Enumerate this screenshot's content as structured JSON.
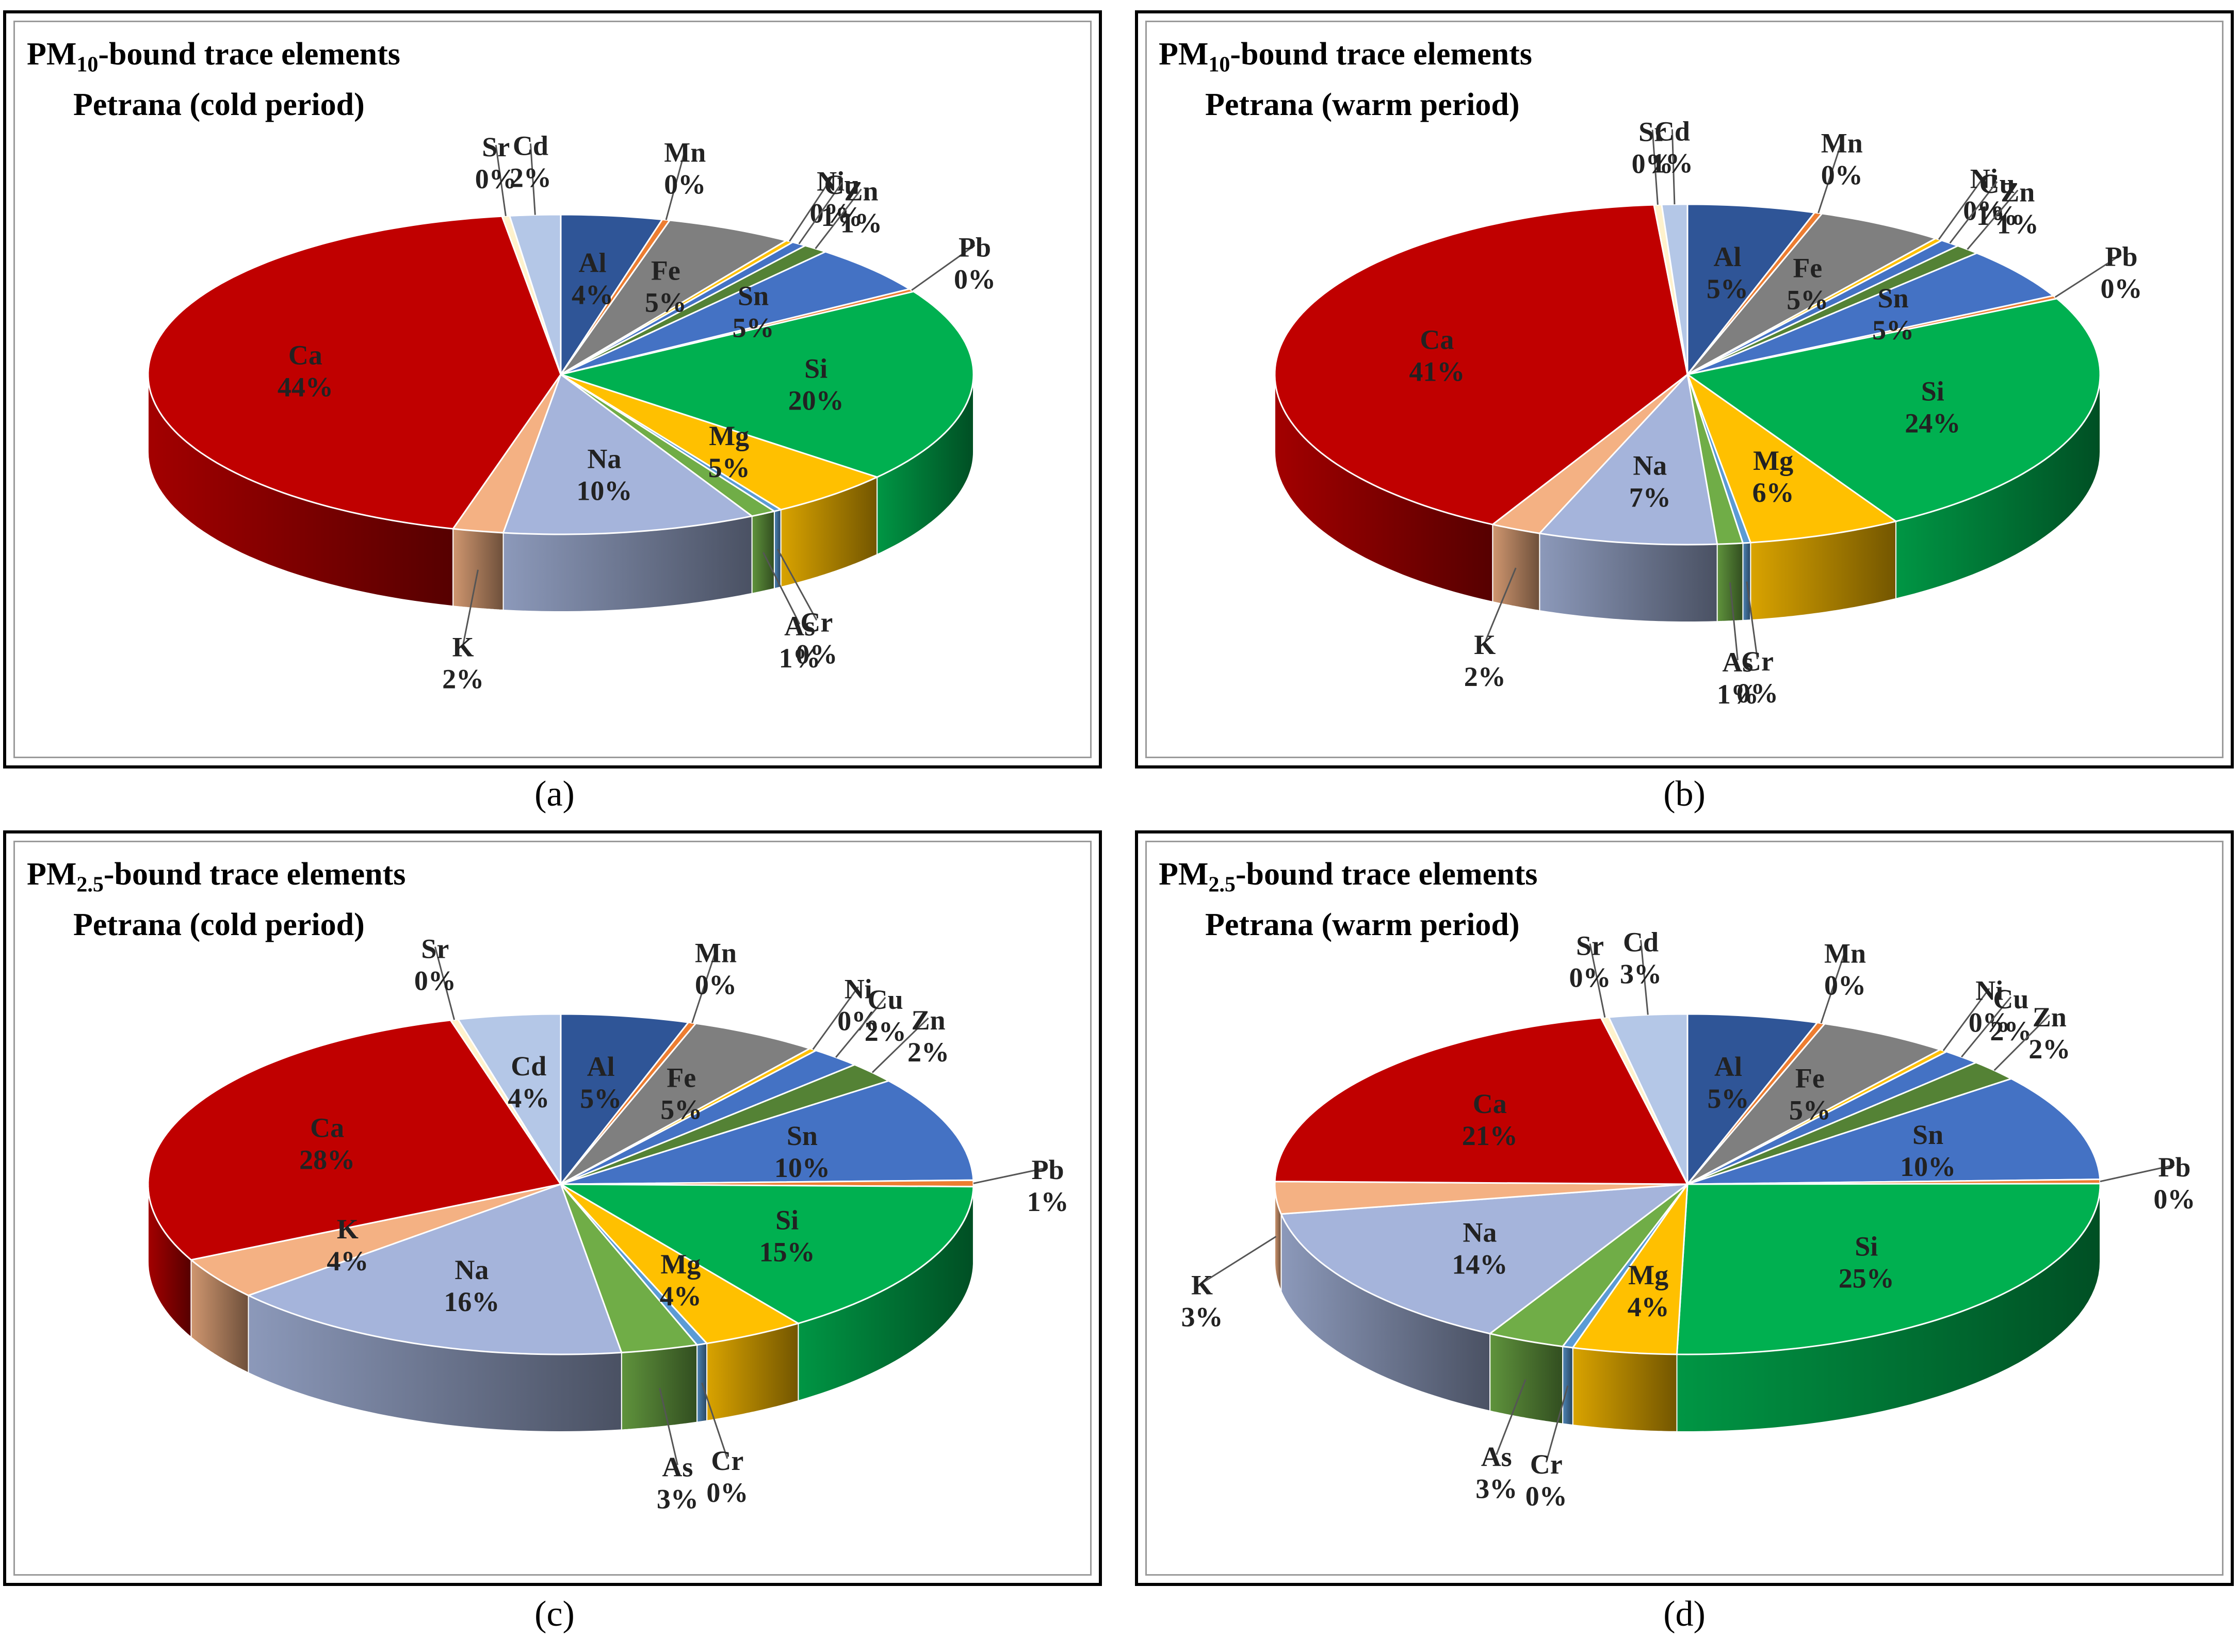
{
  "chart_data": [
    {
      "type": "pie",
      "panel": "a",
      "title_prefix": "PM",
      "title_sub": "10",
      "title_suffix": "-bound trace elements",
      "subtitle": "Petrana (cold period)",
      "caption": "(a)",
      "slices": [
        {
          "name": "Al",
          "value": 4,
          "label": "4%",
          "color": "#2f5597"
        },
        {
          "name": "Mn",
          "value": 0.3,
          "label": "0%",
          "color": "#ed7d31"
        },
        {
          "name": "Fe",
          "value": 5,
          "label": "5%",
          "color": "#7f7f7f"
        },
        {
          "name": "Ni",
          "value": 0.3,
          "label": "0%",
          "color": "#ffc000"
        },
        {
          "name": "Cu",
          "value": 0.6,
          "label": "1%",
          "color": "#4472c4"
        },
        {
          "name": "Zn",
          "value": 1,
          "label": "1%",
          "color": "#548235"
        },
        {
          "name": "Sn",
          "value": 5,
          "label": "5%",
          "color": "#4472c4"
        },
        {
          "name": "Pb",
          "value": 0.3,
          "label": "0%",
          "color": "#ed7d31"
        },
        {
          "name": "Si",
          "value": 20,
          "label": "20%",
          "color": "#00b050"
        },
        {
          "name": "Mg",
          "value": 5,
          "label": "5%",
          "color": "#ffc000"
        },
        {
          "name": "Cr",
          "value": 0.3,
          "label": "0%",
          "color": "#5b9bd5"
        },
        {
          "name": "As",
          "value": 1,
          "label": "1%",
          "color": "#70ad47"
        },
        {
          "name": "Na",
          "value": 10,
          "label": "10%",
          "color": "#a5b4db"
        },
        {
          "name": "K",
          "value": 2,
          "label": "2%",
          "color": "#f4b183"
        },
        {
          "name": "Ca",
          "value": 44,
          "label": "44%",
          "color": "#c00000"
        },
        {
          "name": "Sr",
          "value": 0.3,
          "label": "0%",
          "color": "#fff2cc"
        },
        {
          "name": "Cd",
          "value": 2,
          "label": "2%",
          "color": "#b4c7e7"
        }
      ]
    },
    {
      "type": "pie",
      "panel": "b",
      "title_prefix": "PM",
      "title_sub": "10",
      "title_suffix": "-bound trace elements",
      "subtitle": "Petrana (warm period)",
      "caption": "(b)",
      "slices": [
        {
          "name": "Al",
          "value": 5,
          "label": "5%",
          "color": "#2f5597"
        },
        {
          "name": "Mn",
          "value": 0.3,
          "label": "0%",
          "color": "#ed7d31"
        },
        {
          "name": "Fe",
          "value": 5,
          "label": "5%",
          "color": "#7f7f7f"
        },
        {
          "name": "Ni",
          "value": 0.3,
          "label": "0%",
          "color": "#ffc000"
        },
        {
          "name": "Cu",
          "value": 0.8,
          "label": "1%",
          "color": "#4472c4"
        },
        {
          "name": "Zn",
          "value": 1,
          "label": "1%",
          "color": "#548235"
        },
        {
          "name": "Sn",
          "value": 5,
          "label": "5%",
          "color": "#4472c4"
        },
        {
          "name": "Pb",
          "value": 0.3,
          "label": "0%",
          "color": "#ed7d31"
        },
        {
          "name": "Si",
          "value": 24,
          "label": "24%",
          "color": "#00b050"
        },
        {
          "name": "Mg",
          "value": 6,
          "label": "6%",
          "color": "#ffc000"
        },
        {
          "name": "Cr",
          "value": 0.3,
          "label": "0%",
          "color": "#5b9bd5"
        },
        {
          "name": "As",
          "value": 1,
          "label": "1%",
          "color": "#70ad47"
        },
        {
          "name": "Na",
          "value": 7,
          "label": "7%",
          "color": "#a5b4db"
        },
        {
          "name": "K",
          "value": 2,
          "label": "2%",
          "color": "#f4b183"
        },
        {
          "name": "Ca",
          "value": 41,
          "label": "41%",
          "color": "#c00000"
        },
        {
          "name": "Sr",
          "value": 0.3,
          "label": "0%",
          "color": "#fff2cc"
        },
        {
          "name": "Cd",
          "value": 1,
          "label": "1%",
          "color": "#b4c7e7"
        }
      ]
    },
    {
      "type": "pie",
      "panel": "c",
      "title_prefix": "PM",
      "title_sub": "2.5",
      "title_suffix": "-bound trace elements",
      "subtitle": "Petrana (cold period)",
      "caption": "(c)",
      "slices": [
        {
          "name": "Al",
          "value": 5,
          "label": "5%",
          "color": "#2f5597"
        },
        {
          "name": "Mn",
          "value": 0.3,
          "label": "0%",
          "color": "#ed7d31"
        },
        {
          "name": "Fe",
          "value": 5,
          "label": "5%",
          "color": "#7f7f7f"
        },
        {
          "name": "Ni",
          "value": 0.3,
          "label": "0%",
          "color": "#ffc000"
        },
        {
          "name": "Cu",
          "value": 2,
          "label": "2%",
          "color": "#4472c4"
        },
        {
          "name": "Zn",
          "value": 2,
          "label": "2%",
          "color": "#548235"
        },
        {
          "name": "Sn",
          "value": 10,
          "label": "10%",
          "color": "#4472c4"
        },
        {
          "name": "Pb",
          "value": 0.6,
          "label": "1%",
          "color": "#ed7d31"
        },
        {
          "name": "Si",
          "value": 15,
          "label": "15%",
          "color": "#00b050"
        },
        {
          "name": "Mg",
          "value": 4,
          "label": "4%",
          "color": "#ffc000"
        },
        {
          "name": "Cr",
          "value": 0.4,
          "label": "0%",
          "color": "#5b9bd5"
        },
        {
          "name": "As",
          "value": 3,
          "label": "3%",
          "color": "#70ad47"
        },
        {
          "name": "Na",
          "value": 16,
          "label": "16%",
          "color": "#a5b4db"
        },
        {
          "name": "K",
          "value": 4,
          "label": "4%",
          "color": "#f4b183"
        },
        {
          "name": "Ca",
          "value": 28,
          "label": "28%",
          "color": "#c00000"
        },
        {
          "name": "Sr",
          "value": 0.3,
          "label": "0%",
          "color": "#fff2cc"
        },
        {
          "name": "Cd",
          "value": 4,
          "label": "4%",
          "color": "#b4c7e7"
        }
      ]
    },
    {
      "type": "pie",
      "panel": "d",
      "title_prefix": "PM",
      "title_sub": "2.5",
      "title_suffix": "-bound trace elements",
      "subtitle": "Petrana (warm period)",
      "caption": "(d)",
      "slices": [
        {
          "name": "Al",
          "value": 5,
          "label": "5%",
          "color": "#2f5597"
        },
        {
          "name": "Mn",
          "value": 0.3,
          "label": "0%",
          "color": "#ed7d31"
        },
        {
          "name": "Fe",
          "value": 5,
          "label": "5%",
          "color": "#7f7f7f"
        },
        {
          "name": "Ni",
          "value": 0.3,
          "label": "0%",
          "color": "#ffc000"
        },
        {
          "name": "Cu",
          "value": 1.5,
          "label": "2%",
          "color": "#4472c4"
        },
        {
          "name": "Zn",
          "value": 2,
          "label": "2%",
          "color": "#548235"
        },
        {
          "name": "Sn",
          "value": 10,
          "label": "10%",
          "color": "#4472c4"
        },
        {
          "name": "Pb",
          "value": 0.4,
          "label": "0%",
          "color": "#ed7d31"
        },
        {
          "name": "Si",
          "value": 25,
          "label": "25%",
          "color": "#00b050"
        },
        {
          "name": "Mg",
          "value": 4,
          "label": "4%",
          "color": "#ffc000"
        },
        {
          "name": "Cr",
          "value": 0.4,
          "label": "0%",
          "color": "#5b9bd5"
        },
        {
          "name": "As",
          "value": 3,
          "label": "3%",
          "color": "#70ad47"
        },
        {
          "name": "Na",
          "value": 14,
          "label": "14%",
          "color": "#a5b4db"
        },
        {
          "name": "K",
          "value": 3,
          "label": "3%",
          "color": "#f4b183"
        },
        {
          "name": "Ca",
          "value": 21,
          "label": "21%",
          "color": "#c00000"
        },
        {
          "name": "Sr",
          "value": 0.3,
          "label": "0%",
          "color": "#fff2cc"
        },
        {
          "name": "Cd",
          "value": 3,
          "label": "3%",
          "color": "#b4c7e7"
        }
      ]
    }
  ]
}
